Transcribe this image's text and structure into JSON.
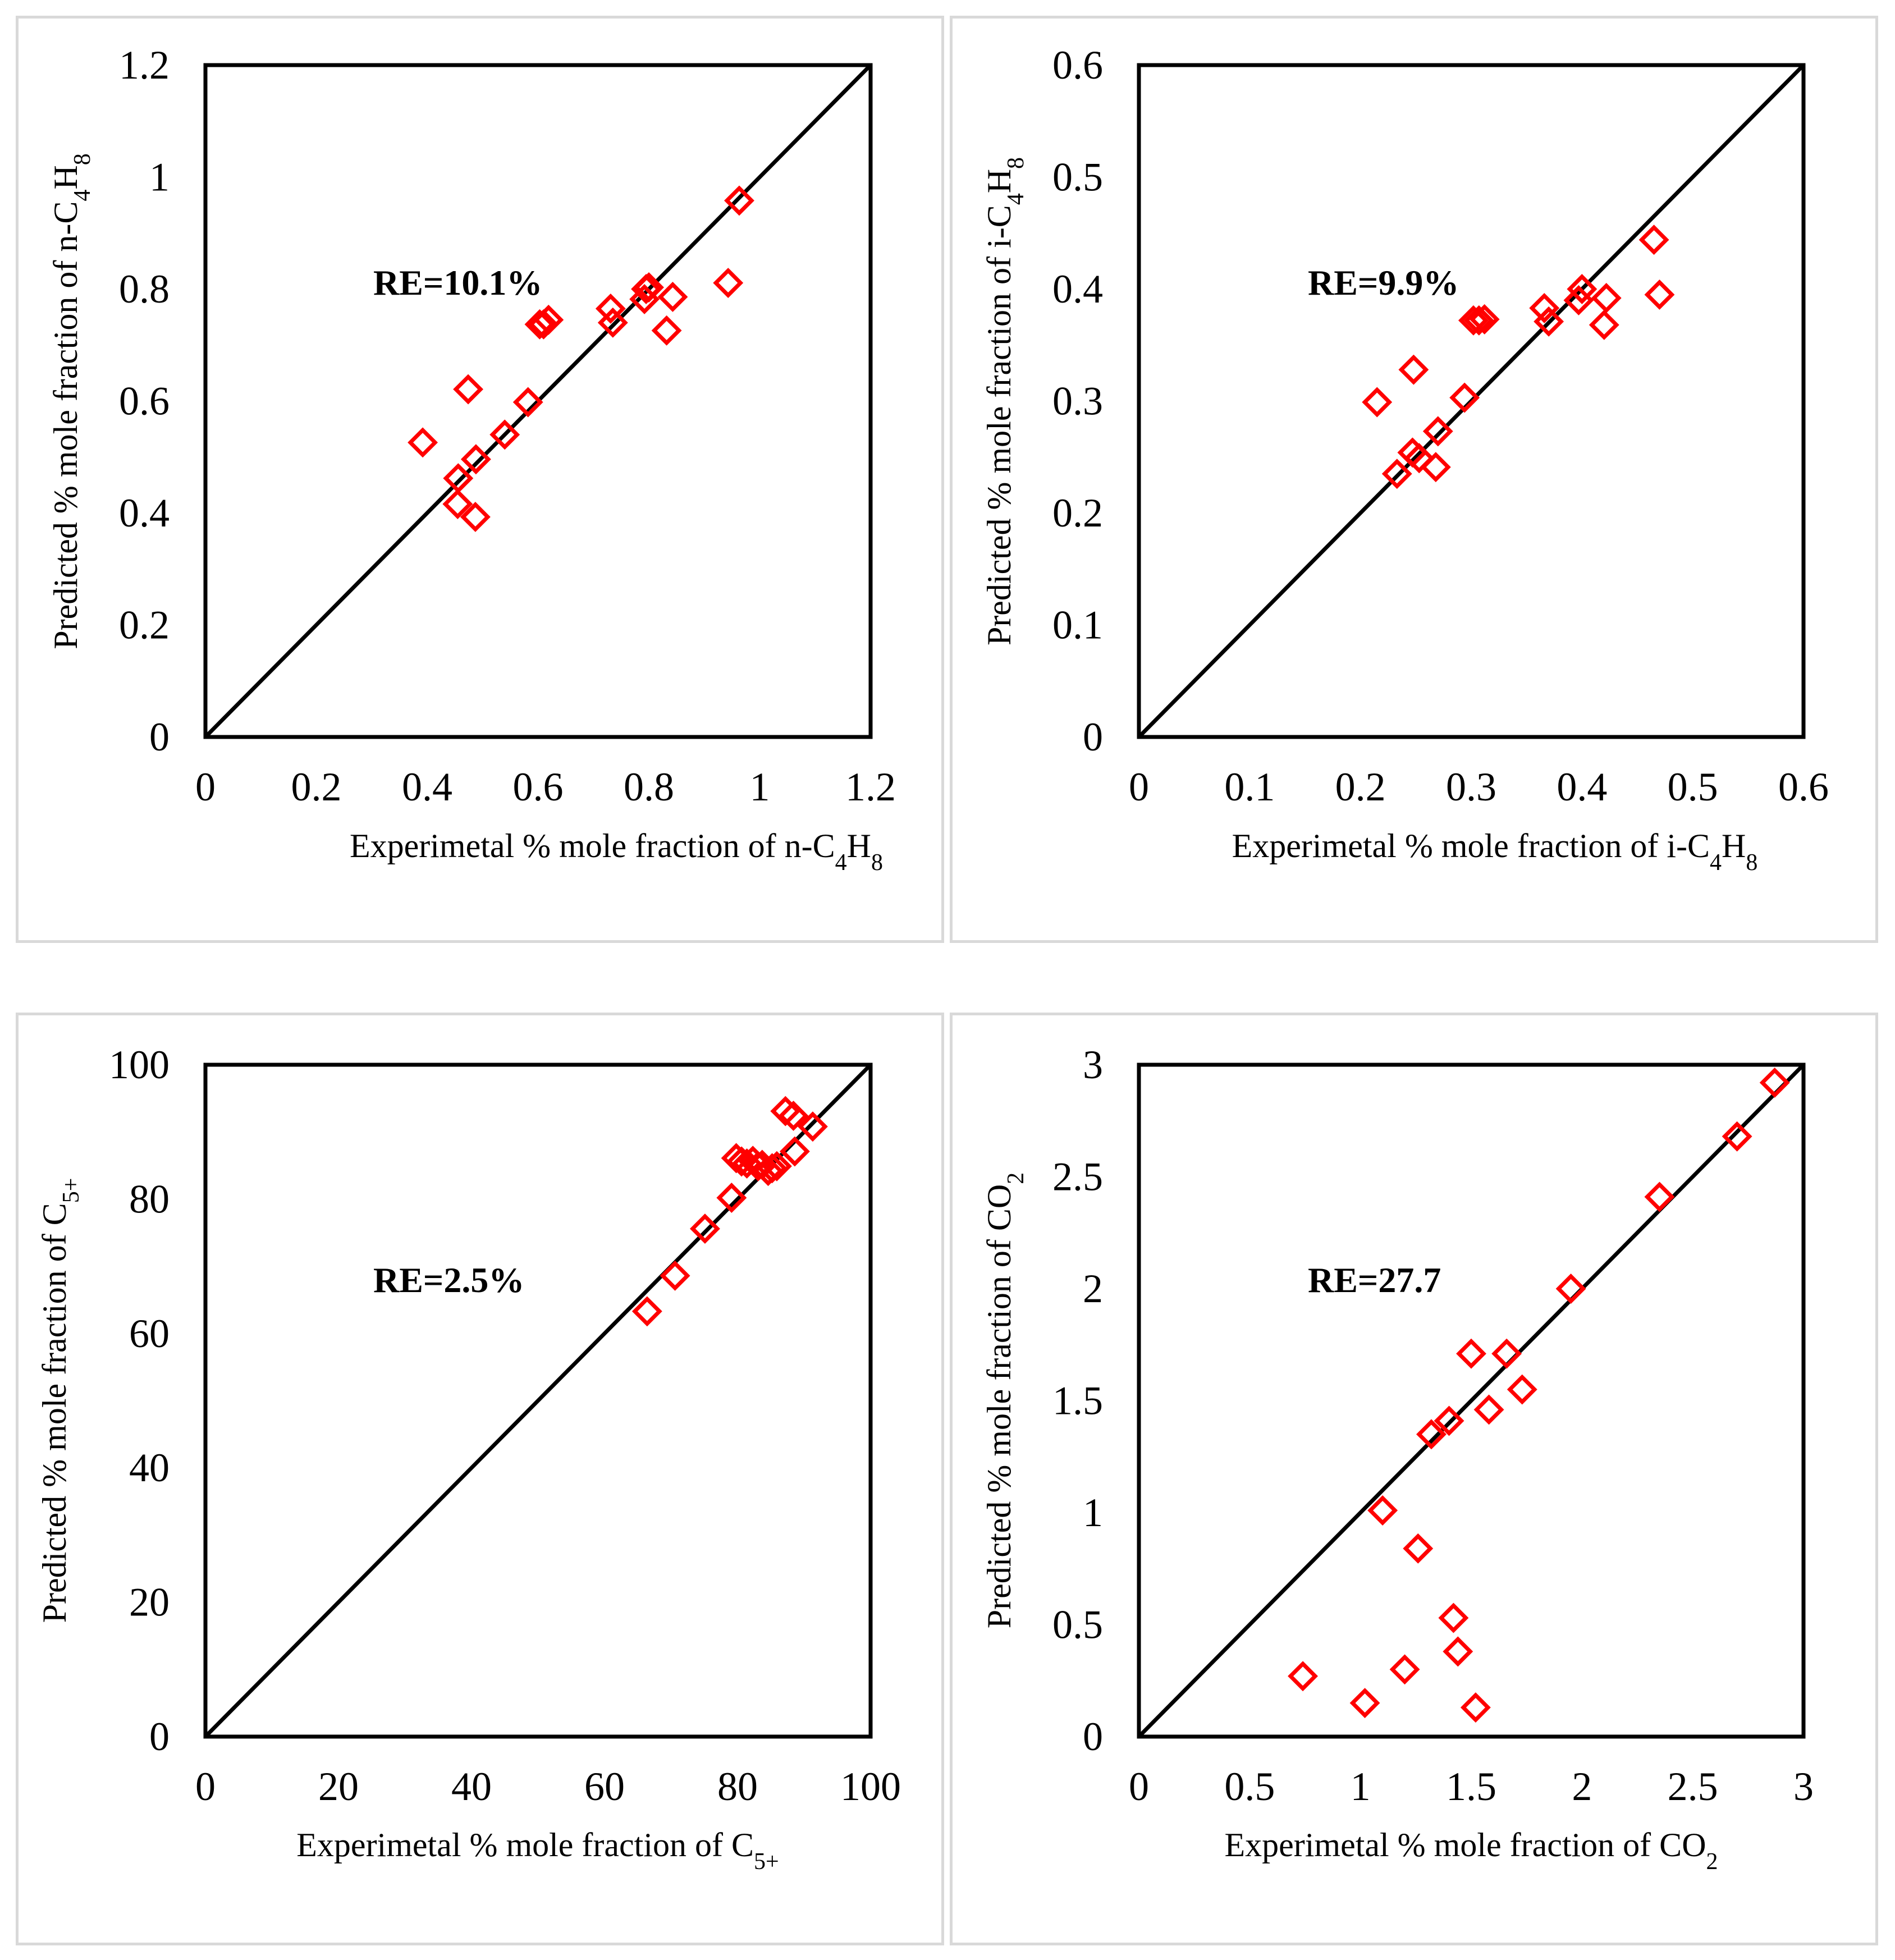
{
  "chart_data": [
    {
      "type": "scatter",
      "title": "",
      "xlabel": "Experimetal % mole fraction of n-C4H8",
      "ylabel": "Predicted % mole fraction of n-C4H8",
      "xlim": [
        0,
        1.2
      ],
      "ylim": [
        0,
        1.2
      ],
      "xticks": [
        "0",
        "0.2",
        "0.4",
        "0.6",
        "0.8",
        "1",
        "1.2"
      ],
      "yticks": [
        "0",
        "0.2",
        "0.4",
        "0.6",
        "0.8",
        "1",
        "1.2"
      ],
      "annotation": "RE=10.1%",
      "reference_line": "y = x",
      "marker": "hollow red diamond",
      "points": [
        [
          0.392,
          0.526
        ],
        [
          0.456,
          0.462
        ],
        [
          0.455,
          0.416
        ],
        [
          0.474,
          0.621
        ],
        [
          0.487,
          0.393
        ],
        [
          0.488,
          0.496
        ],
        [
          0.54,
          0.54
        ],
        [
          0.582,
          0.598
        ],
        [
          0.603,
          0.737
        ],
        [
          0.61,
          0.737
        ],
        [
          0.619,
          0.745
        ],
        [
          0.731,
          0.765
        ],
        [
          0.735,
          0.74
        ],
        [
          0.792,
          0.782
        ],
        [
          0.795,
          0.8
        ],
        [
          0.8,
          0.803
        ],
        [
          0.832,
          0.726
        ],
        [
          0.843,
          0.786
        ],
        [
          0.943,
          0.811
        ],
        [
          0.963,
          0.958
        ]
      ]
    },
    {
      "type": "scatter",
      "title": "",
      "xlabel": "Experimetal % mole fraction of i-C4H8",
      "ylabel": "Predicted % mole fraction of i-C4H8",
      "xlim": [
        0,
        0.6
      ],
      "ylim": [
        0,
        0.6
      ],
      "xticks": [
        "0",
        "0.1",
        "0.2",
        "0.3",
        "0.4",
        "0.5",
        "0.6"
      ],
      "yticks": [
        "0",
        "0.1",
        "0.2",
        "0.3",
        "0.4",
        "0.5",
        "0.6"
      ],
      "annotation": "RE=9.9%",
      "reference_line": "y = x",
      "marker": "hollow red diamond",
      "points": [
        [
          0.215,
          0.299
        ],
        [
          0.233,
          0.235
        ],
        [
          0.247,
          0.254
        ],
        [
          0.248,
          0.328
        ],
        [
          0.253,
          0.249
        ],
        [
          0.268,
          0.241
        ],
        [
          0.27,
          0.273
        ],
        [
          0.294,
          0.303
        ],
        [
          0.302,
          0.372
        ],
        [
          0.307,
          0.372
        ],
        [
          0.312,
          0.373
        ],
        [
          0.366,
          0.383
        ],
        [
          0.37,
          0.371
        ],
        [
          0.397,
          0.39
        ],
        [
          0.4,
          0.4
        ],
        [
          0.42,
          0.368
        ],
        [
          0.422,
          0.392
        ],
        [
          0.465,
          0.444
        ],
        [
          0.47,
          0.395
        ]
      ]
    },
    {
      "type": "scatter",
      "title": "",
      "xlabel": "Experimetal % mole fraction of C5+",
      "ylabel": "Predicted % mole fraction of C5+",
      "xlim": [
        0,
        100
      ],
      "ylim": [
        0,
        100
      ],
      "xticks": [
        "0",
        "20",
        "40",
        "60",
        "80",
        "100"
      ],
      "yticks": [
        "0",
        "20",
        "40",
        "60",
        "80",
        "100"
      ],
      "annotation": "RE=2.5%",
      "reference_line": "y = x",
      "marker": "hollow red diamond",
      "points": [
        [
          66.4,
          63.3
        ],
        [
          70.6,
          68.6
        ],
        [
          75.1,
          75.6
        ],
        [
          79.1,
          80.2
        ],
        [
          79.8,
          86.1
        ],
        [
          80.6,
          85.6
        ],
        [
          81.4,
          85.3
        ],
        [
          82.3,
          85.7
        ],
        [
          83.1,
          84.9
        ],
        [
          83.7,
          85.1
        ],
        [
          84.6,
          84.2
        ],
        [
          85.2,
          84.6
        ],
        [
          85.9,
          84.9
        ],
        [
          87.2,
          93.1
        ],
        [
          88.4,
          92.4
        ],
        [
          88.6,
          87.1
        ],
        [
          91.3,
          90.8
        ]
      ]
    },
    {
      "type": "scatter",
      "title": "",
      "xlabel": "Experimetal % mole fraction of CO2",
      "ylabel": "Predicted % mole fraction of CO2",
      "xlim": [
        0,
        3
      ],
      "ylim": [
        0,
        3
      ],
      "xticks": [
        "0",
        "0.5",
        "1",
        "1.5",
        "2",
        "2.5",
        "3"
      ],
      "yticks": [
        "0",
        "0.5",
        "1",
        "1.5",
        "2",
        "2.5",
        "3"
      ],
      "annotation": "RE=27.7",
      "reference_line": "y = x",
      "marker": "hollow red diamond",
      "points": [
        [
          0.74,
          0.27
        ],
        [
          1.02,
          0.15
        ],
        [
          1.1,
          1.01
        ],
        [
          1.2,
          0.3
        ],
        [
          1.26,
          0.84
        ],
        [
          1.32,
          1.35
        ],
        [
          1.4,
          1.41
        ],
        [
          1.42,
          0.53
        ],
        [
          1.44,
          0.38
        ],
        [
          1.5,
          1.71
        ],
        [
          1.52,
          0.13
        ],
        [
          1.58,
          1.46
        ],
        [
          1.66,
          1.71
        ],
        [
          1.73,
          1.55
        ],
        [
          1.95,
          2.0
        ],
        [
          2.35,
          2.41
        ],
        [
          2.7,
          2.68
        ],
        [
          2.87,
          2.92
        ]
      ]
    }
  ]
}
